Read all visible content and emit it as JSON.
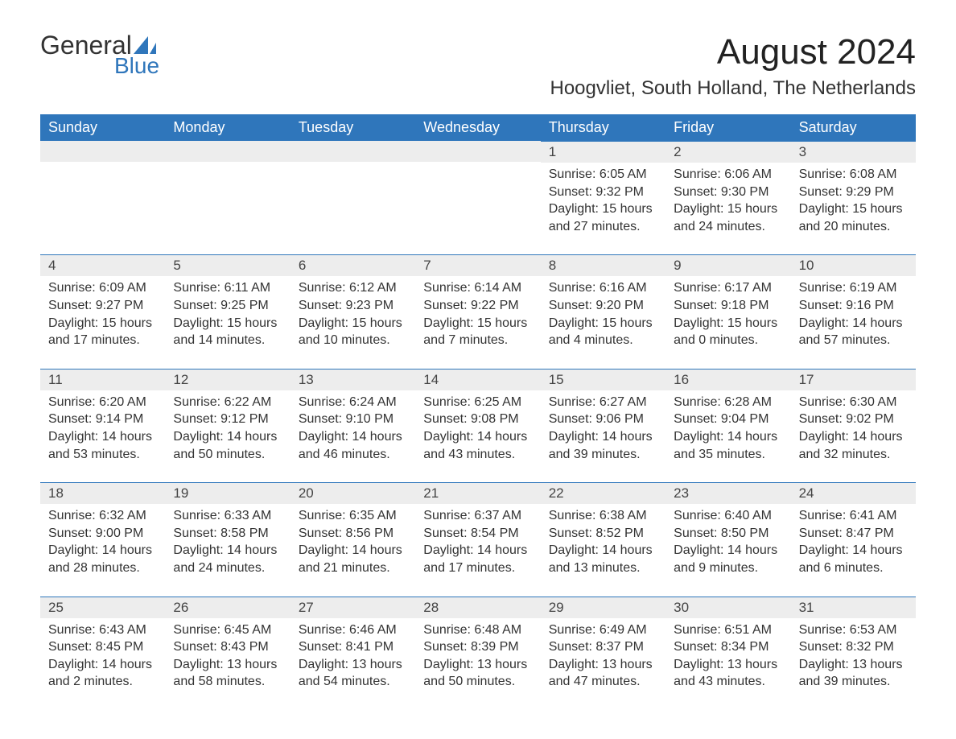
{
  "logo": {
    "word1": "General",
    "word2": "Blue"
  },
  "title": "August 2024",
  "location": "Hoogvliet, South Holland, The Netherlands",
  "colors": {
    "accent": "#2f76bb",
    "header_bg": "#2f76bb",
    "header_text": "#ffffff",
    "daynum_bg": "#ededed",
    "daynum_border": "#2f76bb",
    "body_text": "#333333",
    "background": "#ffffff"
  },
  "day_names": [
    "Sunday",
    "Monday",
    "Tuesday",
    "Wednesday",
    "Thursday",
    "Friday",
    "Saturday"
  ],
  "weeks": [
    [
      null,
      null,
      null,
      null,
      {
        "n": "1",
        "sunrise": "6:05 AM",
        "sunset": "9:32 PM",
        "dl1": "15 hours",
        "dl2": "and 27 minutes."
      },
      {
        "n": "2",
        "sunrise": "6:06 AM",
        "sunset": "9:30 PM",
        "dl1": "15 hours",
        "dl2": "and 24 minutes."
      },
      {
        "n": "3",
        "sunrise": "6:08 AM",
        "sunset": "9:29 PM",
        "dl1": "15 hours",
        "dl2": "and 20 minutes."
      }
    ],
    [
      {
        "n": "4",
        "sunrise": "6:09 AM",
        "sunset": "9:27 PM",
        "dl1": "15 hours",
        "dl2": "and 17 minutes."
      },
      {
        "n": "5",
        "sunrise": "6:11 AM",
        "sunset": "9:25 PM",
        "dl1": "15 hours",
        "dl2": "and 14 minutes."
      },
      {
        "n": "6",
        "sunrise": "6:12 AM",
        "sunset": "9:23 PM",
        "dl1": "15 hours",
        "dl2": "and 10 minutes."
      },
      {
        "n": "7",
        "sunrise": "6:14 AM",
        "sunset": "9:22 PM",
        "dl1": "15 hours",
        "dl2": "and 7 minutes."
      },
      {
        "n": "8",
        "sunrise": "6:16 AM",
        "sunset": "9:20 PM",
        "dl1": "15 hours",
        "dl2": "and 4 minutes."
      },
      {
        "n": "9",
        "sunrise": "6:17 AM",
        "sunset": "9:18 PM",
        "dl1": "15 hours",
        "dl2": "and 0 minutes."
      },
      {
        "n": "10",
        "sunrise": "6:19 AM",
        "sunset": "9:16 PM",
        "dl1": "14 hours",
        "dl2": "and 57 minutes."
      }
    ],
    [
      {
        "n": "11",
        "sunrise": "6:20 AM",
        "sunset": "9:14 PM",
        "dl1": "14 hours",
        "dl2": "and 53 minutes."
      },
      {
        "n": "12",
        "sunrise": "6:22 AM",
        "sunset": "9:12 PM",
        "dl1": "14 hours",
        "dl2": "and 50 minutes."
      },
      {
        "n": "13",
        "sunrise": "6:24 AM",
        "sunset": "9:10 PM",
        "dl1": "14 hours",
        "dl2": "and 46 minutes."
      },
      {
        "n": "14",
        "sunrise": "6:25 AM",
        "sunset": "9:08 PM",
        "dl1": "14 hours",
        "dl2": "and 43 minutes."
      },
      {
        "n": "15",
        "sunrise": "6:27 AM",
        "sunset": "9:06 PM",
        "dl1": "14 hours",
        "dl2": "and 39 minutes."
      },
      {
        "n": "16",
        "sunrise": "6:28 AM",
        "sunset": "9:04 PM",
        "dl1": "14 hours",
        "dl2": "and 35 minutes."
      },
      {
        "n": "17",
        "sunrise": "6:30 AM",
        "sunset": "9:02 PM",
        "dl1": "14 hours",
        "dl2": "and 32 minutes."
      }
    ],
    [
      {
        "n": "18",
        "sunrise": "6:32 AM",
        "sunset": "9:00 PM",
        "dl1": "14 hours",
        "dl2": "and 28 minutes."
      },
      {
        "n": "19",
        "sunrise": "6:33 AM",
        "sunset": "8:58 PM",
        "dl1": "14 hours",
        "dl2": "and 24 minutes."
      },
      {
        "n": "20",
        "sunrise": "6:35 AM",
        "sunset": "8:56 PM",
        "dl1": "14 hours",
        "dl2": "and 21 minutes."
      },
      {
        "n": "21",
        "sunrise": "6:37 AM",
        "sunset": "8:54 PM",
        "dl1": "14 hours",
        "dl2": "and 17 minutes."
      },
      {
        "n": "22",
        "sunrise": "6:38 AM",
        "sunset": "8:52 PM",
        "dl1": "14 hours",
        "dl2": "and 13 minutes."
      },
      {
        "n": "23",
        "sunrise": "6:40 AM",
        "sunset": "8:50 PM",
        "dl1": "14 hours",
        "dl2": "and 9 minutes."
      },
      {
        "n": "24",
        "sunrise": "6:41 AM",
        "sunset": "8:47 PM",
        "dl1": "14 hours",
        "dl2": "and 6 minutes."
      }
    ],
    [
      {
        "n": "25",
        "sunrise": "6:43 AM",
        "sunset": "8:45 PM",
        "dl1": "14 hours",
        "dl2": "and 2 minutes."
      },
      {
        "n": "26",
        "sunrise": "6:45 AM",
        "sunset": "8:43 PM",
        "dl1": "13 hours",
        "dl2": "and 58 minutes."
      },
      {
        "n": "27",
        "sunrise": "6:46 AM",
        "sunset": "8:41 PM",
        "dl1": "13 hours",
        "dl2": "and 54 minutes."
      },
      {
        "n": "28",
        "sunrise": "6:48 AM",
        "sunset": "8:39 PM",
        "dl1": "13 hours",
        "dl2": "and 50 minutes."
      },
      {
        "n": "29",
        "sunrise": "6:49 AM",
        "sunset": "8:37 PM",
        "dl1": "13 hours",
        "dl2": "and 47 minutes."
      },
      {
        "n": "30",
        "sunrise": "6:51 AM",
        "sunset": "8:34 PM",
        "dl1": "13 hours",
        "dl2": "and 43 minutes."
      },
      {
        "n": "31",
        "sunrise": "6:53 AM",
        "sunset": "8:32 PM",
        "dl1": "13 hours",
        "dl2": "and 39 minutes."
      }
    ]
  ],
  "labels": {
    "sunrise_prefix": "Sunrise: ",
    "sunset_prefix": "Sunset: ",
    "daylight_prefix": "Daylight: "
  }
}
